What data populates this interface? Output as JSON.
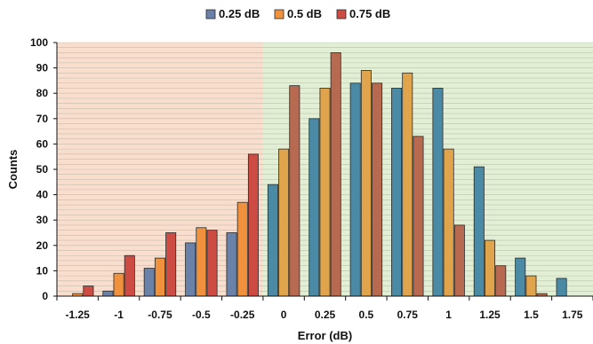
{
  "chart_data": {
    "type": "bar",
    "title": "",
    "xlabel": "Error (dB)",
    "ylabel": "Counts",
    "ylim": [
      0,
      100
    ],
    "yticks": [
      "0",
      "10",
      "20",
      "30",
      "40",
      "50",
      "60",
      "70",
      "80",
      "90",
      "100"
    ],
    "categories": [
      "-1.25",
      "-1",
      "-0.75",
      "-0.5",
      "-0.25",
      "0",
      "0.25",
      "0.5",
      "0.75",
      "1",
      "1.25",
      "1.5",
      "1.75"
    ],
    "grid": true,
    "legend_position": "top-center",
    "background_regions": [
      {
        "from": "-1.25",
        "to": "-0.25",
        "side": "negative",
        "color": "#f9dece"
      },
      {
        "from": "0",
        "to": "1.75",
        "side": "positive",
        "color": "#e2efd5"
      }
    ],
    "series": [
      {
        "name": "0.25 dB",
        "values": [
          0,
          2,
          11,
          21,
          25,
          44,
          70,
          84,
          82,
          82,
          51,
          15,
          7
        ],
        "color_negative": "#6a82a8",
        "color_positive": "#4a8aa4"
      },
      {
        "name": "0.5 dB",
        "values": [
          1,
          9,
          15,
          27,
          37,
          58,
          82,
          89,
          88,
          58,
          22,
          8,
          0
        ],
        "color_negative": "#f0913e",
        "color_positive": "#e0a44c"
      },
      {
        "name": "0.75 dB",
        "values": [
          4,
          16,
          25,
          26,
          56,
          83,
          96,
          84,
          63,
          28,
          12,
          1,
          0
        ],
        "color_negative": "#cc4c44",
        "color_positive": "#b86a50"
      }
    ]
  }
}
